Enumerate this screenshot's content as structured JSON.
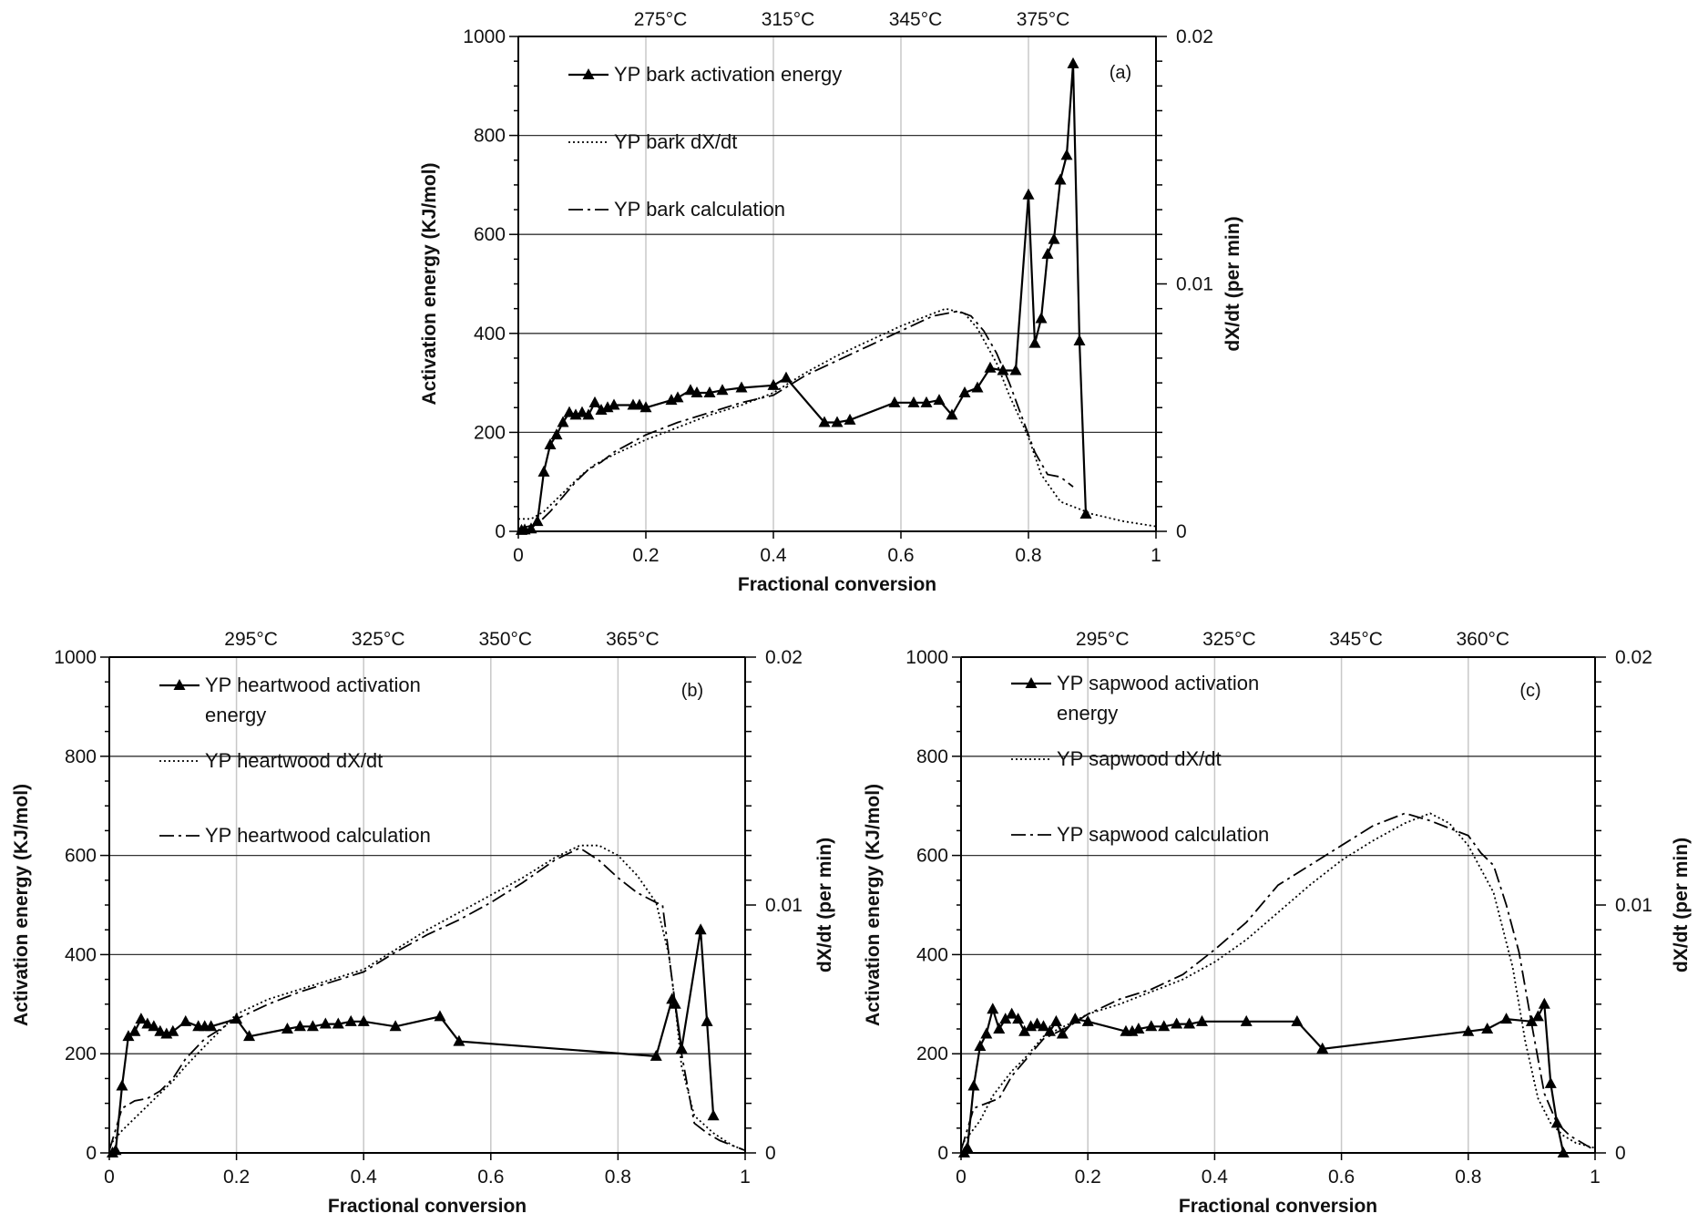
{
  "chart_data": [
    {
      "type": "line",
      "panel_label": "(a)",
      "xlabel": "Fractional conversion",
      "ylabel": "Activation energy (KJ/mol)",
      "y2label": "dX/dt (per min)",
      "xlim": [
        0,
        1
      ],
      "ylim": [
        0,
        1000
      ],
      "y2lim": [
        0,
        0.02
      ],
      "x_ticks": [
        0,
        0.2,
        0.4,
        0.6,
        0.8,
        1
      ],
      "x_tick_labels": [
        "0",
        "0.2",
        "0.4",
        "0.6",
        "0.8",
        "1"
      ],
      "y_ticks": [
        0,
        200,
        400,
        600,
        800,
        1000
      ],
      "y_tick_labels": [
        "0",
        "200",
        "400",
        "600",
        "800",
        "1000"
      ],
      "y2_ticks": [
        0,
        0.01,
        0.02
      ],
      "y2_tick_labels": [
        "0",
        "0.01",
        "0.02"
      ],
      "top_axis": [
        {
          "x": 0.2,
          "label": "275°C"
        },
        {
          "x": 0.4,
          "label": "315°C"
        },
        {
          "x": 0.6,
          "label": "345°C"
        },
        {
          "x": 0.8,
          "label": "375°C"
        }
      ],
      "series": [
        {
          "name": "YP bark activation energy",
          "style": "triangles",
          "axis": "left",
          "x": [
            0.005,
            0.01,
            0.02,
            0.03,
            0.04,
            0.05,
            0.06,
            0.07,
            0.08,
            0.09,
            0.1,
            0.11,
            0.12,
            0.13,
            0.14,
            0.15,
            0.18,
            0.19,
            0.2,
            0.24,
            0.25,
            0.27,
            0.28,
            0.3,
            0.32,
            0.35,
            0.4,
            0.42,
            0.48,
            0.5,
            0.52,
            0.59,
            0.62,
            0.64,
            0.66,
            0.68,
            0.7,
            0.72,
            0.74,
            0.76,
            0.78,
            0.8,
            0.81,
            0.82,
            0.83,
            0.84,
            0.85,
            0.86,
            0.87,
            0.88,
            0.89
          ],
          "values": [
            2,
            3,
            5,
            20,
            120,
            175,
            195,
            220,
            240,
            235,
            240,
            235,
            260,
            245,
            250,
            255,
            255,
            255,
            250,
            265,
            270,
            285,
            280,
            280,
            285,
            290,
            295,
            310,
            220,
            220,
            225,
            260,
            260,
            260,
            265,
            235,
            280,
            290,
            330,
            325,
            325,
            680,
            380,
            430,
            560,
            590,
            710,
            760,
            945,
            385,
            35
          ]
        },
        {
          "name": "YP bark dX/dt",
          "style": "dotted",
          "axis": "right",
          "x": [
            0,
            0.02,
            0.04,
            0.06,
            0.08,
            0.1,
            0.12,
            0.15,
            0.2,
            0.25,
            0.3,
            0.35,
            0.4,
            0.45,
            0.5,
            0.55,
            0.6,
            0.65,
            0.67,
            0.7,
            0.72,
            0.75,
            0.77,
            0.8,
            0.82,
            0.85,
            0.9,
            0.95,
            1.0
          ],
          "values": [
            0.0005,
            0.0005,
            0.0008,
            0.0013,
            0.0018,
            0.0023,
            0.0027,
            0.0031,
            0.0037,
            0.0042,
            0.0047,
            0.0051,
            0.0056,
            0.0064,
            0.0071,
            0.0077,
            0.0083,
            0.0088,
            0.009,
            0.0088,
            0.0082,
            0.0068,
            0.0055,
            0.0038,
            0.0023,
            0.0012,
            0.0007,
            0.0004,
            0.0002
          ]
        },
        {
          "name": "YP bark calculation",
          "style": "dashed",
          "axis": "right",
          "x": [
            0,
            0.03,
            0.05,
            0.07,
            0.09,
            0.11,
            0.13,
            0.15,
            0.2,
            0.25,
            0.3,
            0.35,
            0.4,
            0.45,
            0.5,
            0.55,
            0.6,
            0.65,
            0.69,
            0.71,
            0.73,
            0.75,
            0.77,
            0.79,
            0.81,
            0.83,
            0.85,
            0.87
          ],
          "values": [
            0.0001,
            0.0003,
            0.0008,
            0.0014,
            0.002,
            0.0025,
            0.0028,
            0.0032,
            0.0039,
            0.0044,
            0.0048,
            0.0052,
            0.0055,
            0.0063,
            0.0069,
            0.0075,
            0.0081,
            0.0087,
            0.0089,
            0.0087,
            0.0081,
            0.0072,
            0.006,
            0.0046,
            0.0032,
            0.0023,
            0.0022,
            0.0018
          ]
        }
      ],
      "legend": [
        "YP bark activation energy",
        "YP bark dX/dt",
        "YP bark calculation"
      ]
    },
    {
      "type": "line",
      "panel_label": "(b)",
      "xlabel": "Fractional conversion",
      "ylabel": "Activation energy (KJ/mol)",
      "y2label": "dX/dt (per min)",
      "xlim": [
        0,
        1
      ],
      "ylim": [
        0,
        1000
      ],
      "y2lim": [
        0,
        0.02
      ],
      "x_ticks": [
        0,
        0.2,
        0.4,
        0.6,
        0.8,
        1
      ],
      "x_tick_labels": [
        "0",
        "0.2",
        "0.4",
        "0.6",
        "0.8",
        "1"
      ],
      "y_ticks": [
        0,
        200,
        400,
        600,
        800,
        1000
      ],
      "y_tick_labels": [
        "0",
        "200",
        "400",
        "600",
        "800",
        "1000"
      ],
      "y2_ticks": [
        0,
        0.01,
        0.02
      ],
      "y2_tick_labels": [
        "0",
        "0.01",
        "0.02"
      ],
      "top_axis": [
        {
          "x": 0.2,
          "label": "295°C"
        },
        {
          "x": 0.4,
          "label": "325°C"
        },
        {
          "x": 0.6,
          "label": "350°C"
        },
        {
          "x": 0.8,
          "label": "365°C"
        }
      ],
      "series": [
        {
          "name": "YP heartwood activation energy",
          "style": "triangles",
          "axis": "left",
          "x": [
            0.005,
            0.01,
            0.02,
            0.03,
            0.04,
            0.05,
            0.06,
            0.07,
            0.08,
            0.09,
            0.1,
            0.12,
            0.14,
            0.15,
            0.16,
            0.2,
            0.22,
            0.28,
            0.3,
            0.32,
            0.34,
            0.36,
            0.38,
            0.4,
            0.45,
            0.52,
            0.55,
            0.86,
            0.885,
            0.89,
            0.9,
            0.93,
            0.94,
            0.95
          ],
          "values": [
            0,
            5,
            135,
            235,
            245,
            270,
            260,
            255,
            245,
            240,
            245,
            265,
            255,
            255,
            255,
            270,
            235,
            250,
            255,
            255,
            260,
            260,
            265,
            265,
            255,
            275,
            225,
            195,
            310,
            300,
            210,
            450,
            265,
            75
          ]
        },
        {
          "name": "YP heartwood dX/dt",
          "style": "dotted",
          "axis": "right",
          "x": [
            0,
            0.02,
            0.04,
            0.06,
            0.08,
            0.1,
            0.12,
            0.15,
            0.2,
            0.25,
            0.3,
            0.35,
            0.4,
            0.45,
            0.5,
            0.55,
            0.6,
            0.65,
            0.7,
            0.74,
            0.77,
            0.8,
            0.83,
            0.86,
            0.88,
            0.89,
            0.9,
            0.92,
            0.95,
            0.98,
            1.0
          ],
          "values": [
            0.0003,
            0.0009,
            0.0014,
            0.0019,
            0.0024,
            0.0029,
            0.0035,
            0.0043,
            0.0056,
            0.0062,
            0.0066,
            0.007,
            0.0074,
            0.0082,
            0.009,
            0.0097,
            0.0104,
            0.0111,
            0.0119,
            0.0124,
            0.0124,
            0.012,
            0.0112,
            0.0101,
            0.008,
            0.006,
            0.0035,
            0.0015,
            0.0008,
            0.0003,
            0.0001
          ]
        },
        {
          "name": "YP heartwood calculation",
          "style": "dashed",
          "axis": "right",
          "x": [
            0,
            0.02,
            0.04,
            0.06,
            0.08,
            0.1,
            0.12,
            0.15,
            0.2,
            0.25,
            0.3,
            0.35,
            0.4,
            0.45,
            0.5,
            0.55,
            0.6,
            0.65,
            0.7,
            0.74,
            0.77,
            0.8,
            0.83,
            0.86,
            0.87,
            0.89,
            0.9,
            0.92,
            0.94,
            0.96,
            1.0
          ],
          "values": [
            0.0001,
            0.0018,
            0.0021,
            0.0022,
            0.0025,
            0.003,
            0.0038,
            0.0046,
            0.0054,
            0.006,
            0.0065,
            0.0069,
            0.0073,
            0.0081,
            0.0088,
            0.0094,
            0.0101,
            0.0109,
            0.0118,
            0.0123,
            0.0118,
            0.0111,
            0.0105,
            0.0101,
            0.01,
            0.006,
            0.004,
            0.0012,
            0.0008,
            0.0005,
            0.0001
          ]
        }
      ],
      "legend": [
        "YP heartwood activation energy",
        "YP heartwood dX/dt",
        "YP heartwood calculation"
      ]
    },
    {
      "type": "line",
      "panel_label": "(c)",
      "xlabel": "Fractional conversion",
      "ylabel": "Activation energy (KJ/mol)",
      "y2label": "dX/dt (per min)",
      "xlim": [
        0,
        1
      ],
      "ylim": [
        0,
        1000
      ],
      "y2lim": [
        0,
        0.02
      ],
      "x_ticks": [
        0,
        0.2,
        0.4,
        0.6,
        0.8,
        1
      ],
      "x_tick_labels": [
        "0",
        "0.2",
        "0.4",
        "0.6",
        "0.8",
        "1"
      ],
      "y_ticks": [
        0,
        200,
        400,
        600,
        800,
        1000
      ],
      "y_tick_labels": [
        "0",
        "200",
        "400",
        "600",
        "800",
        "1000"
      ],
      "y2_ticks": [
        0,
        0.01,
        0.02
      ],
      "y2_tick_labels": [
        "0",
        "0.01",
        "0.02"
      ],
      "top_axis": [
        {
          "x": 0.2,
          "label": "295°C"
        },
        {
          "x": 0.4,
          "label": "325°C"
        },
        {
          "x": 0.6,
          "label": "345°C"
        },
        {
          "x": 0.8,
          "label": "360°C"
        }
      ],
      "series": [
        {
          "name": "YP sapwood activation energy",
          "style": "triangles",
          "axis": "left",
          "x": [
            0.005,
            0.01,
            0.02,
            0.03,
            0.04,
            0.05,
            0.06,
            0.07,
            0.08,
            0.09,
            0.1,
            0.11,
            0.12,
            0.13,
            0.14,
            0.15,
            0.16,
            0.18,
            0.2,
            0.26,
            0.27,
            0.28,
            0.3,
            0.32,
            0.34,
            0.36,
            0.38,
            0.45,
            0.53,
            0.57,
            0.8,
            0.83,
            0.86,
            0.9,
            0.91,
            0.92,
            0.93,
            0.94,
            0.95
          ],
          "values": [
            0,
            10,
            135,
            215,
            240,
            290,
            250,
            270,
            280,
            270,
            245,
            255,
            260,
            255,
            245,
            265,
            240,
            270,
            265,
            245,
            245,
            250,
            255,
            255,
            260,
            260,
            265,
            265,
            265,
            210,
            245,
            250,
            270,
            265,
            275,
            300,
            140,
            60,
            0
          ]
        },
        {
          "name": "YP sapwood dX/dt",
          "style": "dotted",
          "axis": "right",
          "x": [
            0,
            0.03,
            0.05,
            0.08,
            0.1,
            0.13,
            0.17,
            0.2,
            0.25,
            0.3,
            0.35,
            0.4,
            0.45,
            0.5,
            0.55,
            0.6,
            0.65,
            0.7,
            0.74,
            0.77,
            0.8,
            0.84,
            0.87,
            0.89,
            0.91,
            0.93,
            0.95,
            0.97,
            1.0
          ],
          "values": [
            0.0003,
            0.0013,
            0.0023,
            0.0033,
            0.0038,
            0.0047,
            0.0052,
            0.0056,
            0.006,
            0.0065,
            0.007,
            0.0077,
            0.0086,
            0.0097,
            0.0108,
            0.0118,
            0.0126,
            0.0133,
            0.0137,
            0.0133,
            0.0124,
            0.0105,
            0.0075,
            0.0045,
            0.0022,
            0.0012,
            0.0007,
            0.0004,
            0.0002
          ]
        },
        {
          "name": "YP sapwood calculation",
          "style": "dashed",
          "axis": "right",
          "x": [
            0,
            0.02,
            0.04,
            0.06,
            0.08,
            0.1,
            0.13,
            0.17,
            0.2,
            0.25,
            0.3,
            0.35,
            0.4,
            0.45,
            0.5,
            0.55,
            0.6,
            0.65,
            0.7,
            0.74,
            0.77,
            0.8,
            0.82,
            0.84,
            0.86,
            0.88,
            0.9,
            0.92,
            0.94,
            0.96,
            1.0
          ],
          "values": [
            0.0001,
            0.0018,
            0.002,
            0.0022,
            0.0031,
            0.0037,
            0.0046,
            0.0051,
            0.0056,
            0.0062,
            0.0066,
            0.0072,
            0.0082,
            0.0093,
            0.0108,
            0.0116,
            0.0124,
            0.0132,
            0.0137,
            0.0134,
            0.0131,
            0.0128,
            0.0121,
            0.0116,
            0.01,
            0.0081,
            0.0052,
            0.0024,
            0.0012,
            0.0007,
            0.0001
          ]
        }
      ],
      "legend": [
        "YP sapwood activation energy",
        "YP sapwood dX/dt",
        "YP sapwood calculation"
      ]
    }
  ]
}
